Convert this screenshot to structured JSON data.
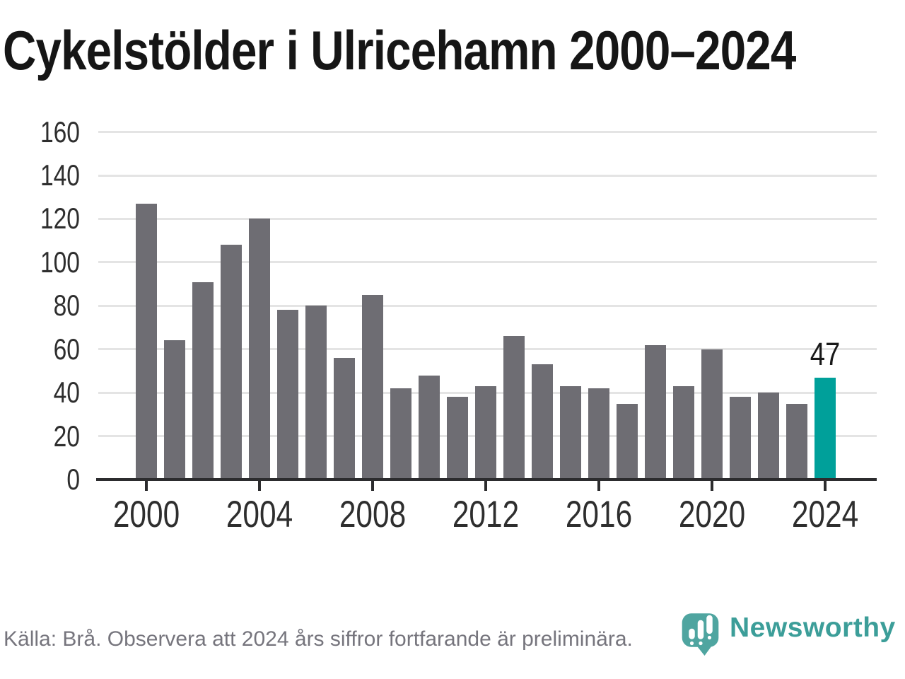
{
  "title": "Cykelstölder i Ulricehamn 2000–2024",
  "chart_data": {
    "type": "bar",
    "title": "Cykelstölder i Ulricehamn 2000–2024",
    "categories": [
      2000,
      2001,
      2002,
      2003,
      2004,
      2005,
      2006,
      2007,
      2008,
      2009,
      2010,
      2011,
      2012,
      2013,
      2014,
      2015,
      2016,
      2017,
      2018,
      2019,
      2020,
      2021,
      2022,
      2023,
      2024
    ],
    "values": [
      127,
      64,
      91,
      108,
      120,
      78,
      80,
      56,
      85,
      42,
      48,
      38,
      43,
      66,
      53,
      43,
      42,
      35,
      62,
      43,
      60,
      38,
      40,
      35,
      47
    ],
    "highlight_index": 24,
    "highlight_label": "47",
    "x_tick_years": [
      2000,
      2004,
      2008,
      2012,
      2016,
      2020,
      2024
    ],
    "x_tick_labels": [
      "2000",
      "2004",
      "2008",
      "2012",
      "2016",
      "2020",
      "2024"
    ],
    "y_ticks": [
      0,
      20,
      40,
      60,
      80,
      100,
      120,
      140,
      160
    ],
    "ylim": [
      0,
      160
    ],
    "grid": "horizontal",
    "legend": "none",
    "bar_color": "#6e6d73",
    "highlight_color": "#00a09a"
  },
  "footer": {
    "source": "Källa: Brå. Observera att 2024 års siffror fortfarande är preliminära.",
    "brand": "Newsworthy"
  },
  "icons": {
    "logo": "newsworthy-speech-bubble-bar-chart-icon"
  },
  "colors": {
    "background": "#ffffff",
    "bar": "#6e6d73",
    "highlight": "#00a09a",
    "title_text": "#161616",
    "axis_labels": "#2e2e2e",
    "gridline": "#e4e4e4",
    "axis_line": "#2c2c2e",
    "footer_text": "#76757d",
    "logo_teal": "#4fa5a0",
    "wordmark_teal": "#3c9e99"
  }
}
